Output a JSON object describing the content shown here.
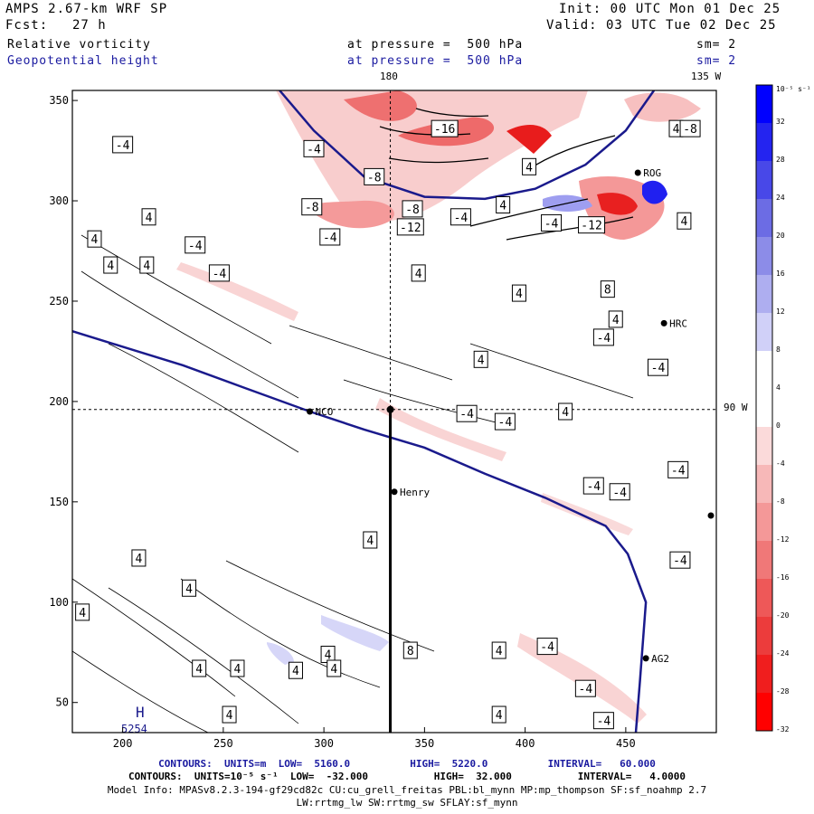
{
  "header": {
    "model": "AMPS 2.67-km WRF SP",
    "init": "Init: 00 UTC Mon 01 Dec 25",
    "fcst_label": "Fcst:",
    "fcst_value": "27 h",
    "valid": "Valid: 03 UTC Tue 02 Dec 25",
    "field1": "Relative vorticity",
    "field1_level": "at pressure =  500 hPa",
    "field1_sm": "sm= 2",
    "field2": "Geopotential height",
    "field2_level": "at pressure =  500 hPa",
    "field2_sm": "sm= 2"
  },
  "lon_labels": {
    "top_180": "180",
    "top_135w": "135 W",
    "right_90w": "90 W"
  },
  "stations": [
    {
      "name": "NCO",
      "x": 293,
      "y": 195
    },
    {
      "name": "Henry",
      "x": 335,
      "y": 155
    },
    {
      "name": "HRC",
      "x": 469,
      "y": 239
    },
    {
      "name": "AG2",
      "x": 460,
      "y": 72
    },
    {
      "name": "ROG",
      "x": 456,
      "y": 314
    }
  ],
  "low_marker": {
    "symbol": "H",
    "value": "5254"
  },
  "colorbar": {
    "unit_label": "10⁻⁵ s⁻¹",
    "ticks": [
      "32",
      "28",
      "24",
      "20",
      "16",
      "12",
      "8",
      "4",
      "0",
      "-4",
      "-8",
      "-12",
      "-16",
      "-20",
      "-24",
      "-28",
      "-32"
    ],
    "colors": [
      "#0000ff",
      "#2424f0",
      "#4848e8",
      "#6c6ce4",
      "#8c8ce8",
      "#aeaef0",
      "#d0d0f8",
      "#ffffff",
      "#ffffff",
      "#fbdada",
      "#f7b8b8",
      "#f49898",
      "#f07878",
      "#ee5858",
      "#ec3c3c",
      "#f01e1e",
      "#ff0000"
    ]
  },
  "chart_data": {
    "type": "contour-map",
    "title": "Relative vorticity / Geopotential height at 500 hPa",
    "xaxis": {
      "range": [
        175,
        495
      ],
      "ticks": [
        200,
        250,
        300,
        350,
        400,
        450
      ]
    },
    "yaxis": {
      "range": [
        35,
        355
      ],
      "ticks": [
        50,
        100,
        150,
        200,
        250,
        300,
        350
      ]
    },
    "cross_section": {
      "x": 333,
      "y_from": 35,
      "y_to": 197
    },
    "crosshair": {
      "x": 333,
      "y": 196
    },
    "vorticity_labels": [
      {
        "v": "-4",
        "x": 200,
        "y": 328
      },
      {
        "v": "4",
        "x": 213,
        "y": 292
      },
      {
        "v": "4",
        "x": 186,
        "y": 281
      },
      {
        "v": "4",
        "x": 194,
        "y": 268
      },
      {
        "v": "4",
        "x": 212,
        "y": 268
      },
      {
        "v": "-4",
        "x": 236,
        "y": 278
      },
      {
        "v": "-4",
        "x": 248,
        "y": 264
      },
      {
        "v": "-8",
        "x": 294,
        "y": 297
      },
      {
        "v": "-4",
        "x": 295,
        "y": 326
      },
      {
        "v": "-8",
        "x": 325,
        "y": 312
      },
      {
        "v": "-16",
        "x": 360,
        "y": 336
      },
      {
        "v": "-4",
        "x": 303,
        "y": 282
      },
      {
        "v": "-12",
        "x": 343,
        "y": 287
      },
      {
        "v": "-8",
        "x": 344,
        "y": 296
      },
      {
        "v": "4",
        "x": 347,
        "y": 264
      },
      {
        "v": "-4",
        "x": 368,
        "y": 292
      },
      {
        "v": "4",
        "x": 389,
        "y": 298
      },
      {
        "v": "4",
        "x": 397,
        "y": 254
      },
      {
        "v": "4",
        "x": 402,
        "y": 317
      },
      {
        "v": "-4",
        "x": 413,
        "y": 289
      },
      {
        "v": "-12",
        "x": 433,
        "y": 288
      },
      {
        "v": "8",
        "x": 441,
        "y": 256
      },
      {
        "v": "4",
        "x": 445,
        "y": 241
      },
      {
        "v": "-4",
        "x": 439,
        "y": 232
      },
      {
        "v": "4",
        "x": 475,
        "y": 336
      },
      {
        "v": "-8",
        "x": 482,
        "y": 336
      },
      {
        "v": "4",
        "x": 479,
        "y": 290
      },
      {
        "v": "4",
        "x": 378,
        "y": 221
      },
      {
        "v": "-4",
        "x": 371,
        "y": 194
      },
      {
        "v": "-4",
        "x": 390,
        "y": 190
      },
      {
        "v": "4",
        "x": 420,
        "y": 195
      },
      {
        "v": "-4",
        "x": 466,
        "y": 217
      },
      {
        "v": "-4",
        "x": 476,
        "y": 166
      },
      {
        "v": "-4",
        "x": 434,
        "y": 158
      },
      {
        "v": "-4",
        "x": 447,
        "y": 155
      },
      {
        "v": "-4",
        "x": 477,
        "y": 121
      },
      {
        "v": "4",
        "x": 323,
        "y": 131
      },
      {
        "v": "4",
        "x": 208,
        "y": 122
      },
      {
        "v": "4",
        "x": 180,
        "y": 95
      },
      {
        "v": "4",
        "x": 233,
        "y": 107
      },
      {
        "v": "4",
        "x": 302,
        "y": 74
      },
      {
        "v": "8",
        "x": 343,
        "y": 76
      },
      {
        "v": "4",
        "x": 305,
        "y": 67
      },
      {
        "v": "4",
        "x": 286,
        "y": 66
      },
      {
        "v": "4",
        "x": 238,
        "y": 67
      },
      {
        "v": "4",
        "x": 257,
        "y": 67
      },
      {
        "v": "4",
        "x": 253,
        "y": 44
      },
      {
        "v": "4",
        "x": 387,
        "y": 76
      },
      {
        "v": "4",
        "x": 387,
        "y": 44
      },
      {
        "v": "-4",
        "x": 411,
        "y": 78
      },
      {
        "v": "-4",
        "x": 430,
        "y": 57
      },
      {
        "v": "-4",
        "x": 439,
        "y": 41
      }
    ],
    "height_line_1": {
      "value": 5220,
      "points": [
        [
          175,
          235
        ],
        [
          230,
          218
        ],
        [
          260,
          207
        ],
        [
          293,
          195
        ],
        [
          320,
          186
        ],
        [
          350,
          177
        ],
        [
          380,
          164
        ],
        [
          410,
          152
        ],
        [
          440,
          138
        ],
        [
          451,
          124
        ],
        [
          460,
          100
        ],
        [
          457,
          60
        ],
        [
          455,
          35
        ]
      ]
    },
    "height_line_2": {
      "value": 5220,
      "points": [
        [
          278,
          355
        ],
        [
          295,
          335
        ],
        [
          320,
          312
        ],
        [
          350,
          302
        ],
        [
          380,
          301
        ],
        [
          405,
          306
        ],
        [
          430,
          318
        ],
        [
          450,
          335
        ],
        [
          464,
          355
        ]
      ]
    },
    "contour_footer_height": "CONTOURS:  UNITS=m  LOW=  5160.0          HIGH=  5220.0          INTERVAL=   60.000",
    "contour_footer_vort": "CONTOURS:  UNITS=10⁻⁵ s⁻¹  LOW=  -32.000           HIGH=  32.000           INTERVAL=   4.0000"
  },
  "footer": {
    "model_info": "Model Info: MPASv8.2.3-194-gf29cd82c CU:cu_grell_freitas PBL:bl_mynn MP:mp_thompson SF:sf_noahmp 2.7",
    "model_info_2": "LW:rrtmg_lw SW:rrtmg_sw SFLAY:sf_mynn"
  }
}
